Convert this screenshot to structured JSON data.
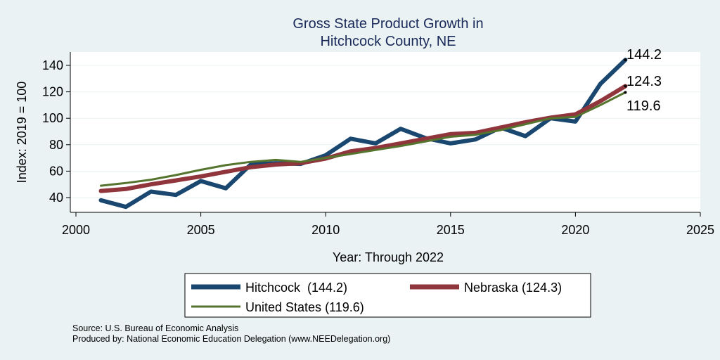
{
  "chart_data": {
    "type": "line",
    "title_lines": [
      "Gross State Product Growth in",
      "Hitchcock County, NE"
    ],
    "xlabel": "Year: Through 2022",
    "ylabel": "Index: 2019 = 100",
    "xlim": [
      2000,
      2025
    ],
    "ylim": [
      30,
      150
    ],
    "xticks": [
      2000,
      2005,
      2010,
      2015,
      2020,
      2025
    ],
    "yticks": [
      40,
      60,
      80,
      100,
      120,
      140
    ],
    "x": [
      2001,
      2002,
      2003,
      2004,
      2005,
      2006,
      2007,
      2008,
      2009,
      2010,
      2011,
      2012,
      2013,
      2014,
      2015,
      2016,
      2017,
      2018,
      2019,
      2020,
      2021,
      2022
    ],
    "series": [
      {
        "name": "Hitchcock",
        "legend_label": "Hitchcock  (144.2)",
        "color": "#1a476f",
        "end_label": "144.2",
        "values": [
          38,
          33,
          44.5,
          42,
          52.5,
          47,
          65,
          66,
          65.5,
          72,
          84.5,
          81,
          92,
          85,
          81,
          84,
          93,
          86.5,
          100,
          97.5,
          126,
          144.2
        ]
      },
      {
        "name": "Nebraska",
        "legend_label": "Nebraska (124.3)",
        "color": "#90353b",
        "end_label": "124.3",
        "values": [
          45,
          46.5,
          50,
          53,
          56,
          59.5,
          63,
          65,
          66,
          69.5,
          75,
          77.5,
          81,
          84.5,
          88,
          89,
          93,
          97,
          100.5,
          103,
          113,
          124.3
        ]
      },
      {
        "name": "United States",
        "legend_label": "United States (119.6)",
        "color": "#55752f",
        "end_label": "119.6",
        "values": [
          49,
          51,
          53.5,
          57,
          61,
          64.5,
          67,
          68.5,
          67,
          70,
          73,
          76,
          79,
          82.5,
          86,
          87.5,
          91,
          95.5,
          100,
          101,
          110,
          119.6
        ]
      }
    ],
    "legend_position": "bottom"
  },
  "source_text": "Source: U.S. Bureau of Economic Analysis",
  "producer_text": "Produced by: National Economic Education Delegation (www.NEEDelegation.org)"
}
